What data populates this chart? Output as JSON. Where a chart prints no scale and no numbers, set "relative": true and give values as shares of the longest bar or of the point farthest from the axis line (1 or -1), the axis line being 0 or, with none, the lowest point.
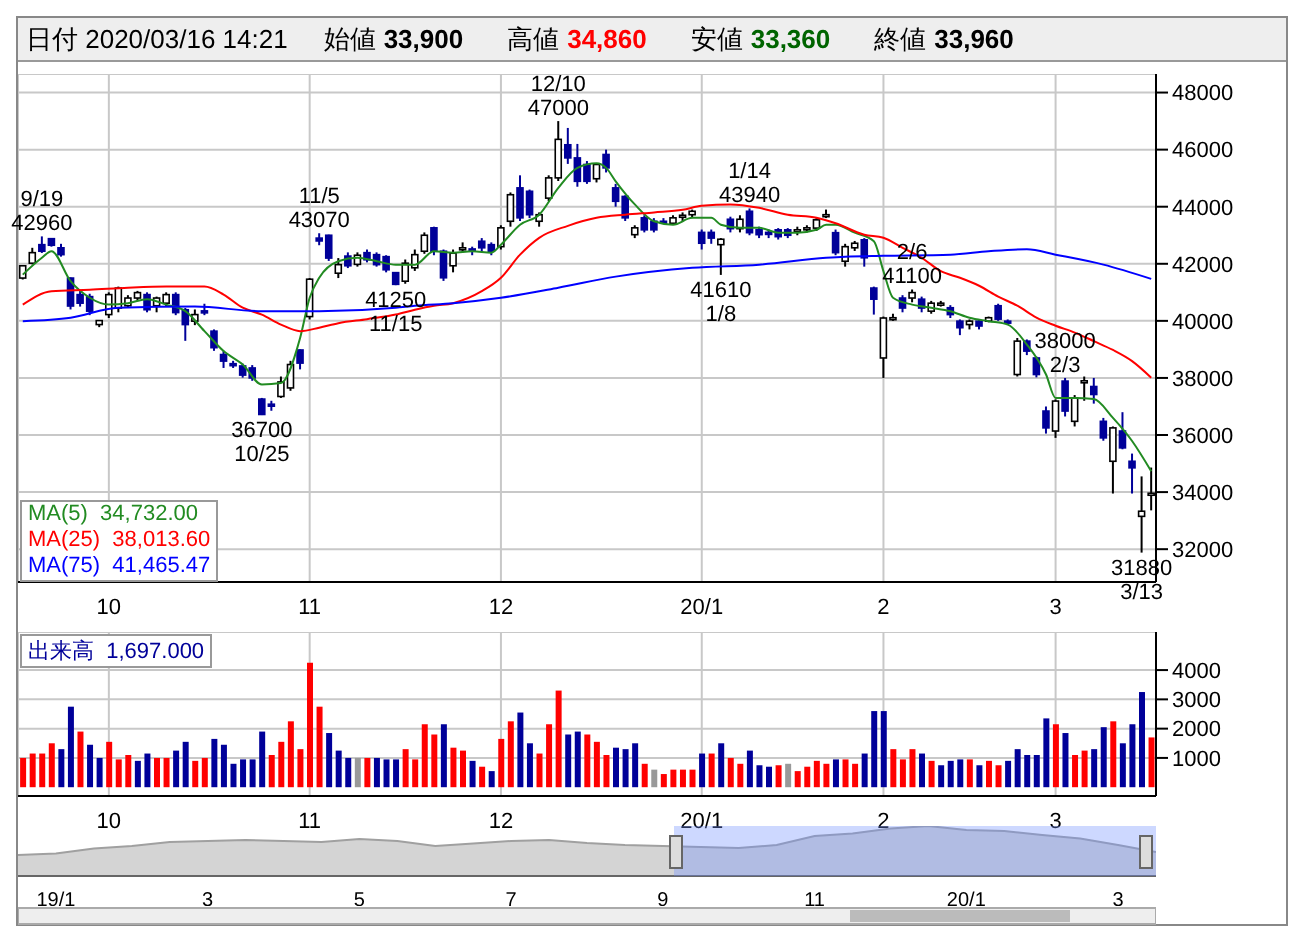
{
  "chart_data": [
    {
      "type": "candlestick",
      "title": "日付 2020/03/16 14:21",
      "annotations": [
        "始値",
        "33,900",
        "高値",
        "34,860",
        "安値",
        "33,360",
        "終値",
        "33,960",
        {
          "text": "9/19",
          "y": 42960
        },
        {
          "text": "42960",
          "y": 42960
        },
        {
          "text": "11/5",
          "y": 43070
        },
        {
          "text": "43070",
          "y": 43070
        },
        {
          "text": "12/10",
          "y": 47000
        },
        {
          "text": "47000",
          "y": 47000
        },
        {
          "text": "1/14",
          "y": 43940
        },
        {
          "text": "43940",
          "y": 43940
        },
        {
          "text": "2/6",
          "y": 41100
        },
        {
          "text": "41100",
          "y": 41100
        },
        {
          "text": "36700",
          "y": 36700
        },
        {
          "text": "10/25",
          "y": 36700
        },
        {
          "text": "41250",
          "y": 41250
        },
        {
          "text": "11/15",
          "y": 41250
        },
        {
          "text": "41610",
          "y": 41610
        },
        {
          "text": "1/8",
          "y": 41610
        },
        {
          "text": "38000",
          "y": 38000
        },
        {
          "text": "2/3",
          "y": 38000
        },
        {
          "text": "31880",
          "y": 31880
        },
        {
          "text": "3/13",
          "y": 31880
        }
      ],
      "categories": [
        null,
        null,
        null,
        null,
        null,
        null,
        null,
        null,
        null,
        "10",
        null,
        null,
        null,
        null,
        null,
        null,
        null,
        null,
        null,
        null,
        null,
        null,
        null,
        null,
        null,
        null,
        null,
        null,
        null,
        null,
        "11",
        null,
        null,
        null,
        null,
        null,
        null,
        null,
        null,
        null,
        null,
        null,
        null,
        null,
        null,
        null,
        null,
        null,
        null,
        null,
        "12",
        null,
        null,
        null,
        null,
        null,
        null,
        null,
        null,
        null,
        null,
        null,
        null,
        null,
        null,
        null,
        null,
        null,
        null,
        null,
        null,
        "20/1",
        null,
        null,
        null,
        null,
        null,
        null,
        null,
        null,
        null,
        null,
        null,
        null,
        null,
        null,
        null,
        null,
        null,
        null,
        "2",
        null,
        null,
        null,
        null,
        null,
        null,
        null,
        null,
        null,
        null,
        null,
        null,
        null,
        null,
        null,
        null,
        null,
        "3",
        null,
        null,
        null,
        null,
        null,
        null,
        null,
        null,
        null,
        null
      ],
      "ohlc": [
        [
          41500,
          41950,
          41450,
          41930
        ],
        [
          42020,
          42560,
          41980,
          42390
        ],
        [
          42670,
          42960,
          42380,
          42440
        ],
        [
          42880,
          42900,
          42600,
          42650
        ],
        [
          42560,
          42700,
          42250,
          42320
        ],
        [
          41500,
          41520,
          40400,
          40520
        ],
        [
          40920,
          41080,
          40500,
          40620
        ],
        [
          40850,
          40950,
          40200,
          40340
        ],
        [
          39870,
          40020,
          39780,
          40010
        ],
        [
          40220,
          41000,
          40100,
          40920
        ],
        [
          40450,
          41200,
          40300,
          41150
        ],
        [
          40530,
          40900,
          40450,
          40800
        ],
        [
          40800,
          41050,
          40700,
          40990
        ],
        [
          40920,
          41000,
          40300,
          40390
        ],
        [
          40530,
          40850,
          40300,
          40800
        ],
        [
          40620,
          41000,
          40500,
          40920
        ],
        [
          40920,
          41000,
          40200,
          40290
        ],
        [
          40390,
          40450,
          39300,
          39870
        ],
        [
          39990,
          40400,
          39850,
          40220
        ],
        [
          40350,
          40600,
          40200,
          40300
        ],
        [
          39640,
          39700,
          38950,
          39060
        ],
        [
          38820,
          38950,
          38350,
          38590
        ],
        [
          38500,
          38600,
          38350,
          38470
        ],
        [
          38420,
          38500,
          38010,
          38100
        ],
        [
          38350,
          38450,
          37900,
          38000
        ],
        [
          37260,
          37300,
          36700,
          36720
        ],
        [
          37080,
          37200,
          36850,
          37050
        ],
        [
          37350,
          38050,
          37300,
          37860
        ],
        [
          37650,
          38600,
          37550,
          38470
        ],
        [
          38980,
          39000,
          38300,
          38520
        ],
        [
          40150,
          41500,
          40050,
          41460
        ],
        [
          42900,
          43070,
          42650,
          42800
        ],
        [
          43000,
          43020,
          42100,
          42200
        ],
        [
          41670,
          42200,
          41500,
          41970
        ],
        [
          42270,
          42400,
          41850,
          41930
        ],
        [
          41980,
          42400,
          41900,
          42300
        ],
        [
          42390,
          42500,
          42050,
          42140
        ],
        [
          42320,
          42400,
          41900,
          41970
        ],
        [
          42250,
          42300,
          41700,
          41790
        ],
        [
          41690,
          41700,
          41250,
          41280
        ],
        [
          41390,
          42150,
          41300,
          42020
        ],
        [
          41860,
          42500,
          41750,
          42320
        ],
        [
          42440,
          43100,
          42350,
          43000
        ],
        [
          43260,
          43300,
          42300,
          42440
        ],
        [
          42440,
          42500,
          41400,
          41510
        ],
        [
          41930,
          42500,
          41700,
          42370
        ],
        [
          42540,
          42750,
          42400,
          42560
        ],
        [
          42520,
          42600,
          42300,
          42480
        ],
        [
          42790,
          42900,
          42400,
          42560
        ],
        [
          42670,
          42750,
          42300,
          42440
        ],
        [
          42600,
          43350,
          42500,
          43260
        ],
        [
          43490,
          44500,
          43300,
          44420
        ],
        [
          44660,
          45100,
          43500,
          43610
        ],
        [
          44540,
          44600,
          43600,
          43720
        ],
        [
          43490,
          43800,
          43300,
          43720
        ],
        [
          44300,
          45100,
          44200,
          45010
        ],
        [
          45010,
          47000,
          44900,
          46360
        ],
        [
          46170,
          46760,
          45500,
          45710
        ],
        [
          45710,
          46200,
          44700,
          44890
        ],
        [
          45480,
          45600,
          44800,
          44890
        ],
        [
          44980,
          45500,
          44850,
          45480
        ],
        [
          45830,
          46000,
          45200,
          45360
        ],
        [
          44660,
          44800,
          44000,
          44190
        ],
        [
          44360,
          44400,
          43500,
          43610
        ],
        [
          43020,
          43350,
          42900,
          43260
        ],
        [
          43610,
          43700,
          43100,
          43190
        ],
        [
          43490,
          43600,
          43100,
          43190
        ],
        [
          43490,
          43600,
          43400,
          43470
        ],
        [
          43420,
          43700,
          43400,
          43610
        ],
        [
          43680,
          43800,
          43500,
          43700
        ],
        [
          43720,
          43900,
          43600,
          43840
        ],
        [
          43100,
          43200,
          42500,
          42720
        ],
        [
          43100,
          43200,
          42700,
          42900
        ],
        [
          42670,
          42900,
          41610,
          42860
        ],
        [
          43560,
          43650,
          43100,
          43230
        ],
        [
          43230,
          43700,
          43100,
          43560
        ],
        [
          43840,
          43940,
          43000,
          43090
        ],
        [
          43190,
          43300,
          42900,
          43020
        ],
        [
          43100,
          43200,
          42900,
          43050
        ],
        [
          43190,
          43250,
          42850,
          42950
        ],
        [
          43190,
          43250,
          42900,
          43000
        ],
        [
          43160,
          43300,
          43000,
          43190
        ],
        [
          43230,
          43350,
          43100,
          43260
        ],
        [
          43250,
          43600,
          43150,
          43540
        ],
        [
          43700,
          43900,
          43600,
          43720
        ],
        [
          43090,
          43200,
          42300,
          42390
        ],
        [
          42090,
          42700,
          41900,
          42600
        ],
        [
          42560,
          42800,
          42450,
          42720
        ],
        [
          42840,
          42900,
          41900,
          42210
        ],
        [
          41150,
          41200,
          40220,
          40760
        ],
        [
          38700,
          40150,
          38000,
          40100
        ],
        [
          40100,
          40250,
          40000,
          40110
        ],
        [
          40800,
          40900,
          40300,
          40450
        ],
        [
          40800,
          41100,
          40650,
          40990
        ],
        [
          40760,
          40850,
          40300,
          40450
        ],
        [
          40340,
          40700,
          40250,
          40620
        ],
        [
          40610,
          40700,
          40500,
          40620
        ],
        [
          40460,
          40550,
          40100,
          40220
        ],
        [
          39990,
          40050,
          39500,
          39760
        ],
        [
          39870,
          40050,
          39700,
          39990
        ],
        [
          39990,
          40050,
          39700,
          39820
        ],
        [
          39990,
          40150,
          39950,
          40110
        ],
        [
          40530,
          40600,
          40000,
          40060
        ],
        [
          39990,
          40050,
          39900,
          39970
        ],
        [
          38120,
          39400,
          38050,
          39290
        ],
        [
          39290,
          39350,
          38800,
          38940
        ],
        [
          38700,
          38750,
          38020,
          38120
        ],
        [
          36840,
          37000,
          36050,
          36250
        ],
        [
          36140,
          37250,
          35900,
          37190
        ],
        [
          37890,
          38000,
          36650,
          36840
        ],
        [
          36480,
          37400,
          36300,
          37300
        ],
        [
          37880,
          38050,
          37200,
          37900
        ],
        [
          37700,
          38000,
          37100,
          37420
        ],
        [
          36480,
          36600,
          35800,
          35900
        ],
        [
          35080,
          36300,
          33950,
          36250
        ],
        [
          36140,
          36800,
          35500,
          35550
        ],
        [
          35080,
          35350,
          33950,
          34850
        ],
        [
          33150,
          34550,
          31880,
          33330
        ],
        [
          33900,
          34860,
          33360,
          33960
        ]
      ],
      "colors": [
        "#ffffff",
        "#ffffff",
        "#000099",
        "#000099",
        "#000099",
        "#000099",
        "#000099",
        "#000099",
        "#ffffff",
        "#ffffff",
        "#ffffff",
        "#ffffff",
        "#ffffff",
        "#000099",
        "#ffffff",
        "#ffffff",
        "#000099",
        "#000099",
        "#ffffff",
        "#000099",
        "#000099",
        "#000099",
        "#000099",
        "#000099",
        "#000099",
        "#000099",
        "#000099",
        "#ffffff",
        "#ffffff",
        "#000099",
        "#ffffff",
        "#000099",
        "#000099",
        "#ffffff",
        "#000099",
        "#ffffff",
        "#000099",
        "#000099",
        "#000099",
        "#000099",
        "#ffffff",
        "#ffffff",
        "#ffffff",
        "#000099",
        "#000099",
        "#ffffff",
        "#ffffff",
        "#000099",
        "#000099",
        "#000099",
        "#ffffff",
        "#ffffff",
        "#000099",
        "#000099",
        "#ffffff",
        "#ffffff",
        "#ffffff",
        "#000099",
        "#000099",
        "#000099",
        "#ffffff",
        "#000099",
        "#000099",
        "#000099",
        "#ffffff",
        "#000099",
        "#000099",
        "#000099",
        "#ffffff",
        "#ffffff",
        "#ffffff",
        "#000099",
        "#000099",
        "#ffffff",
        "#000099",
        "#ffffff",
        "#000099",
        "#000099",
        "#000099",
        "#000099",
        "#000099",
        "#ffffff",
        "#ffffff",
        "#ffffff",
        "#ffffff",
        "#000099",
        "#ffffff",
        "#ffffff",
        "#000099",
        "#000099",
        "#ffffff",
        "#ffffff",
        "#000099",
        "#ffffff",
        "#000099",
        "#ffffff",
        "#ffffff",
        "#000099",
        "#000099",
        "#ffffff",
        "#000099",
        "#ffffff",
        "#000099",
        "#000099",
        "#ffffff",
        "#000099",
        "#000099",
        "#000099",
        "#ffffff",
        "#000099",
        "#ffffff",
        "#ffffff",
        "#000099",
        "#000099",
        "#ffffff",
        "#000099",
        "#000099",
        "#ffffff",
        "#ffffff"
      ],
      "series": [
        {
          "type": "line",
          "name": "MA(5)  34,732.00",
          "color": "#228b22",
          "values": [
            41620,
            null,
            42210,
            42440,
            null,
            41390,
            null,
            40810,
            null,
            40570,
            null,
            40620,
            null,
            40760,
            null,
            40570,
            null,
            40340,
            null,
            39640,
            null,
            38940,
            null,
            38470,
            null,
            37770,
            null,
            37820,
            null,
            39400,
            40810,
            41510,
            null,
            42090,
            null,
            42210,
            null,
            42090,
            null,
            41970,
            null,
            41970,
            null,
            42440,
            null,
            42390,
            null,
            42440,
            null,
            42390,
            42670,
            null,
            43370,
            null,
            43720,
            null,
            44660,
            null,
            45360,
            null,
            45520,
            45360,
            44890,
            null,
            44080,
            null,
            43490,
            null,
            43370,
            null,
            43610,
            null,
            43610,
            43370,
            null,
            43260,
            null,
            43260,
            null,
            43090,
            null,
            43090,
            null,
            43190,
            43370,
            43370,
            null,
            43090,
            null,
            42790,
            41740,
            40810,
            null,
            40570,
            null,
            40460,
            null,
            40340,
            null,
            40110,
            null,
            39990,
            null,
            39870,
            null,
            39170,
            null,
            38120,
            37300,
            null,
            37300,
            null,
            37260,
            null,
            36600,
            null,
            35790,
            null,
            34730
          ]
        },
        {
          "type": "line",
          "name": "MA(25)  38,013.60",
          "color": "#ff0000",
          "values": [
            40570,
            null,
            null,
            41040,
            null,
            null,
            null,
            41090,
            null,
            null,
            null,
            41160,
            null,
            null,
            null,
            41200,
            null,
            null,
            null,
            41200,
            null,
            40920,
            null,
            40460,
            null,
            40220,
            null,
            39870,
            null,
            39640,
            null,
            39760,
            null,
            39920,
            null,
            null,
            40060,
            null,
            null,
            40220,
            null,
            40390,
            null,
            40530,
            null,
            40620,
            null,
            null,
            41040,
            null,
            41510,
            null,
            42320,
            null,
            42910,
            null,
            null,
            43330,
            null,
            null,
            43610,
            null,
            null,
            43720,
            null,
            null,
            43800,
            null,
            null,
            43890,
            null,
            44030,
            null,
            null,
            44080,
            null,
            null,
            43960,
            null,
            null,
            43720,
            null,
            null,
            43610,
            null,
            43420,
            null,
            null,
            43020,
            null,
            42910,
            null,
            42560,
            null,
            42210,
            null,
            41740,
            null,
            41510,
            null,
            41230,
            null,
            40850,
            null,
            40530,
            null,
            40110,
            null,
            39830,
            null,
            39590,
            null,
            39290,
            null,
            38980,
            null,
            38590,
            null,
            38010
          ]
        },
        {
          "type": "line",
          "name": "MA(75)  41,465.47",
          "color": "#0000ff",
          "values": [
            39990,
            null,
            null,
            null,
            null,
            40110,
            null,
            null,
            null,
            null,
            40460,
            null,
            null,
            null,
            null,
            null,
            null,
            null,
            40500,
            null,
            null,
            null,
            null,
            null,
            null,
            40340,
            null,
            null,
            null,
            null,
            null,
            40340,
            null,
            null,
            null,
            null,
            null,
            null,
            null,
            40460,
            null,
            40530,
            null,
            null,
            null,
            40620,
            null,
            null,
            null,
            null,
            40810,
            null,
            null,
            null,
            null,
            null,
            41160,
            null,
            null,
            null,
            null,
            null,
            41550,
            null,
            null,
            null,
            null,
            null,
            null,
            null,
            41860,
            null,
            null,
            null,
            null,
            null,
            null,
            41970,
            null,
            null,
            null,
            null,
            null,
            null,
            42210,
            null,
            42250,
            null,
            null,
            null,
            42280,
            null,
            null,
            null,
            null,
            null,
            null,
            42320,
            null,
            null,
            null,
            42440,
            null,
            null,
            null,
            42510,
            null,
            null,
            42320,
            null,
            null,
            null,
            null,
            41970,
            null,
            null,
            null,
            null,
            41470
          ]
        }
      ],
      "ylim": [
        30850,
        48650
      ],
      "yticks": [
        32000,
        34000,
        36000,
        38000,
        40000,
        42000,
        44000,
        46000,
        48000
      ],
      "grid": true,
      "legend": "bottom left"
    },
    {
      "type": "bar",
      "title": "出来高  1,697.000",
      "categories": [
        null,
        null,
        null,
        null,
        null,
        null,
        null,
        null,
        null,
        "10",
        null,
        null,
        null,
        null,
        null,
        null,
        null,
        null,
        null,
        null,
        null,
        null,
        null,
        null,
        null,
        null,
        null,
        null,
        null,
        null,
        "11",
        null,
        null,
        null,
        null,
        null,
        null,
        null,
        null,
        null,
        null,
        null,
        null,
        null,
        null,
        null,
        null,
        null,
        null,
        null,
        "12",
        null,
        null,
        null,
        null,
        null,
        null,
        null,
        null,
        null,
        null,
        null,
        null,
        null,
        null,
        null,
        null,
        null,
        null,
        null,
        null,
        "20/1",
        null,
        null,
        null,
        null,
        null,
        null,
        null,
        null,
        null,
        null,
        null,
        null,
        null,
        null,
        null,
        null,
        null,
        null,
        "2",
        null,
        null,
        null,
        null,
        null,
        null,
        null,
        null,
        null,
        null,
        null,
        null,
        null,
        null,
        null,
        null,
        null,
        "3",
        null,
        null,
        null,
        null,
        null,
        null,
        null,
        null,
        null,
        null
      ],
      "values": [
        1000,
        1150,
        1150,
        1500,
        1300,
        2750,
        1900,
        1450,
        1000,
        1550,
        950,
        1100,
        900,
        1150,
        1000,
        1000,
        1250,
        1550,
        900,
        1000,
        1650,
        1450,
        800,
        950,
        950,
        1900,
        1100,
        1550,
        2250,
        1300,
        4250,
        2750,
        1850,
        1250,
        1000,
        1000,
        1000,
        1000,
        950,
        950,
        1300,
        950,
        2150,
        1800,
        2150,
        1350,
        1250,
        900,
        700,
        550,
        1650,
        2250,
        2550,
        1500,
        1150,
        2150,
        3300,
        1800,
        1900,
        1800,
        1550,
        1100,
        1350,
        1300,
        1500,
        800,
        600,
        450,
        600,
        600,
        600,
        1150,
        1150,
        1500,
        1000,
        800,
        1250,
        750,
        700,
        750,
        800,
        550,
        700,
        900,
        800,
        950,
        950,
        800,
        1150,
        2600,
        2600,
        1300,
        950,
        1300,
        1150,
        900,
        750,
        900,
        950,
        950,
        750,
        900,
        750,
        900,
        1300,
        1100,
        1100,
        2350,
        2150,
        1850,
        1100,
        1250,
        1300,
        2050,
        2250,
        1500,
        2150,
        3250,
        1700
      ],
      "colors": [
        "#ff0000",
        "#ff0000",
        "#ff0000",
        "#ff0000",
        "#000099",
        "#000099",
        "#ff0000",
        "#000099",
        "#000099",
        "#ff0000",
        "#ff0000",
        "#ff0000",
        "#000099",
        "#000099",
        "#ff0000",
        "#ff0000",
        "#000099",
        "#000099",
        "#ff0000",
        "#ff0000",
        "#000099",
        "#000099",
        "#000099",
        "#000099",
        "#000099",
        "#000099",
        "#ff0000",
        "#ff0000",
        "#ff0000",
        "#ff0000",
        "#ff0000",
        "#ff0000",
        "#000099",
        "#000099",
        "#000099",
        "#999999",
        "#ff0000",
        "#000099",
        "#000099",
        "#000099",
        "#ff0000",
        "#ff0000",
        "#ff0000",
        "#ff0000",
        "#000099",
        "#ff0000",
        "#ff0000",
        "#000099",
        "#ff0000",
        "#000099",
        "#ff0000",
        "#ff0000",
        "#000099",
        "#000099",
        "#ff0000",
        "#ff0000",
        "#ff0000",
        "#000099",
        "#000099",
        "#ff0000",
        "#ff0000",
        "#ff0000",
        "#000099",
        "#000099",
        "#000099",
        "#ff0000",
        "#999999",
        "#ff0000",
        "#ff0000",
        "#ff0000",
        "#ff0000",
        "#000099",
        "#ff0000",
        "#000099",
        "#ff0000",
        "#ff0000",
        "#000099",
        "#000099",
        "#000099",
        "#ff0000",
        "#999999",
        "#ff0000",
        "#ff0000",
        "#ff0000",
        "#ff0000",
        "#000099",
        "#ff0000",
        "#ff0000",
        "#000099",
        "#000099",
        "#000099",
        "#ff0000",
        "#ff0000",
        "#ff0000",
        "#000099",
        "#ff0000",
        "#000099",
        "#000099",
        "#000099",
        "#ff0000",
        "#000099",
        "#ff0000",
        "#ff0000",
        "#000099",
        "#000099",
        "#000099",
        "#000099",
        "#000099",
        "#ff0000",
        "#000099",
        "#ff0000",
        "#ff0000",
        "#000099",
        "#000099",
        "#ff0000",
        "#000099",
        "#000099",
        "#000099",
        "#ff0000"
      ],
      "ylim": [
        -300,
        5300
      ],
      "yticks": [
        1000,
        2000,
        3000,
        4000
      ],
      "grid": true
    },
    {
      "type": "area",
      "relative": true,
      "tick_labels": "x",
      "color": "#a0a0a0",
      "categories": [
        null,
        "19/1",
        null,
        null,
        null,
        "3",
        null,
        null,
        null,
        "5",
        null,
        null,
        null,
        "7",
        null,
        null,
        null,
        "9",
        null,
        null,
        null,
        "11",
        null,
        null,
        null,
        "20/1",
        null,
        null,
        null,
        "3",
        null
      ],
      "values": [
        0.42,
        0.45,
        0.55,
        0.6,
        0.68,
        0.7,
        0.72,
        0.7,
        0.68,
        0.74,
        0.7,
        0.6,
        0.65,
        0.7,
        0.72,
        0.66,
        0.62,
        0.6,
        0.58,
        0.56,
        0.62,
        0.8,
        0.85,
        0.95,
        1,
        0.92,
        0.9,
        0.82,
        0.75,
        0.62,
        0.48
      ]
    }
  ]
}
